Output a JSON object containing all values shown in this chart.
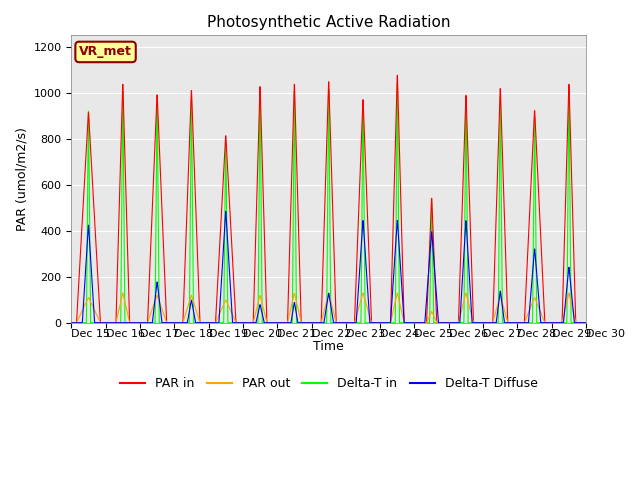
{
  "title": "Photosynthetic Active Radiation",
  "xlabel": "Time",
  "ylabel": "PAR (umol/m2/s)",
  "ylim": [
    0,
    1250
  ],
  "yticks": [
    0,
    200,
    400,
    600,
    800,
    1000,
    1200
  ],
  "legend_labels": [
    "PAR in",
    "PAR out",
    "Delta-T in",
    "Delta-T Diffuse"
  ],
  "box_label": "VR_met",
  "box_color": "#FFFF99",
  "box_border": "#8B0000",
  "background_color": "#E8E8E8",
  "n_days": 15,
  "xtick_labels": [
    "Dec 15",
    "Dec 16",
    "Dec 17",
    "Dec 18",
    "Dec 19",
    "Dec 20",
    "Dec 21",
    "Dec 22",
    "Dec 23",
    "Dec 24",
    "Dec 25",
    "Dec 26",
    "Dec 27",
    "Dec 28",
    "Dec 29",
    "Dec 30"
  ],
  "title_fontsize": 11,
  "axis_label_fontsize": 9,
  "tick_fontsize": 8,
  "legend_fontsize": 9,
  "par_in_peaks": [
    920,
    1050,
    1000,
    1020,
    820,
    1040,
    1050,
    1060,
    980,
    1090,
    550,
    1000,
    1030,
    930,
    1050
  ],
  "par_out_peaks": [
    110,
    130,
    120,
    120,
    100,
    120,
    130,
    130,
    130,
    130,
    50,
    130,
    120,
    110,
    130
  ],
  "delta_t_peaks": [
    960,
    1050,
    1000,
    1020,
    820,
    1040,
    1050,
    1060,
    980,
    1090,
    550,
    1000,
    1030,
    930,
    1050
  ],
  "diffuse_peaks": [
    430,
    0,
    180,
    100,
    490,
    80,
    90,
    130,
    450,
    450,
    400,
    450,
    140,
    325,
    245
  ],
  "par_in_widths": [
    0.35,
    0.2,
    0.28,
    0.25,
    0.3,
    0.2,
    0.2,
    0.22,
    0.25,
    0.2,
    0.15,
    0.22,
    0.22,
    0.3,
    0.2
  ],
  "delta_t_widths": [
    0.06,
    0.06,
    0.06,
    0.06,
    0.06,
    0.06,
    0.06,
    0.06,
    0.06,
    0.06,
    0.06,
    0.06,
    0.06,
    0.06,
    0.06
  ],
  "diffuse_widths": [
    0.18,
    0.0,
    0.14,
    0.12,
    0.2,
    0.12,
    0.1,
    0.14,
    0.2,
    0.2,
    0.2,
    0.18,
    0.12,
    0.18,
    0.16
  ]
}
